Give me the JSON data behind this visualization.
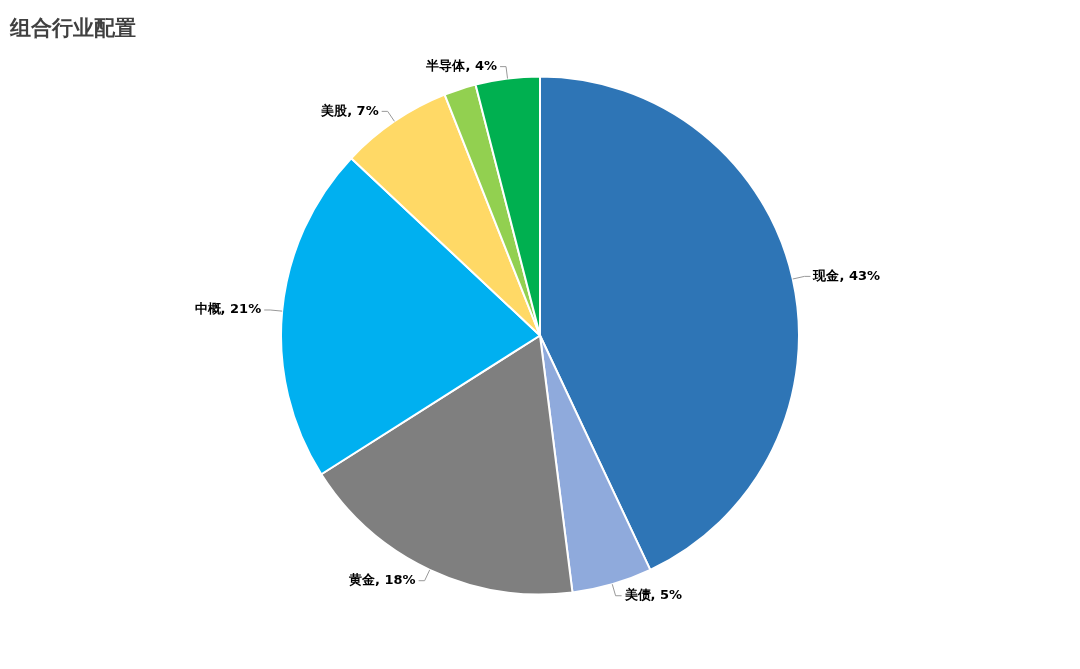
{
  "chart_data": {
    "type": "pie",
    "title": "组合行业配置",
    "categories": [
      "现金",
      "美债",
      "黄金",
      "中概",
      "美股",
      null,
      "半导体"
    ],
    "values": [
      43,
      5,
      18,
      21,
      7,
      2,
      4
    ],
    "colors": [
      "#2e75b6",
      "#8faadc",
      "#7f7f7f",
      "#00b0f0",
      "#ffd966",
      "#92d050",
      "#00b050"
    ],
    "value_labels": [
      "43%",
      "5%",
      "18%",
      "21%",
      "7%",
      null,
      "4%"
    ],
    "legend": false
  }
}
